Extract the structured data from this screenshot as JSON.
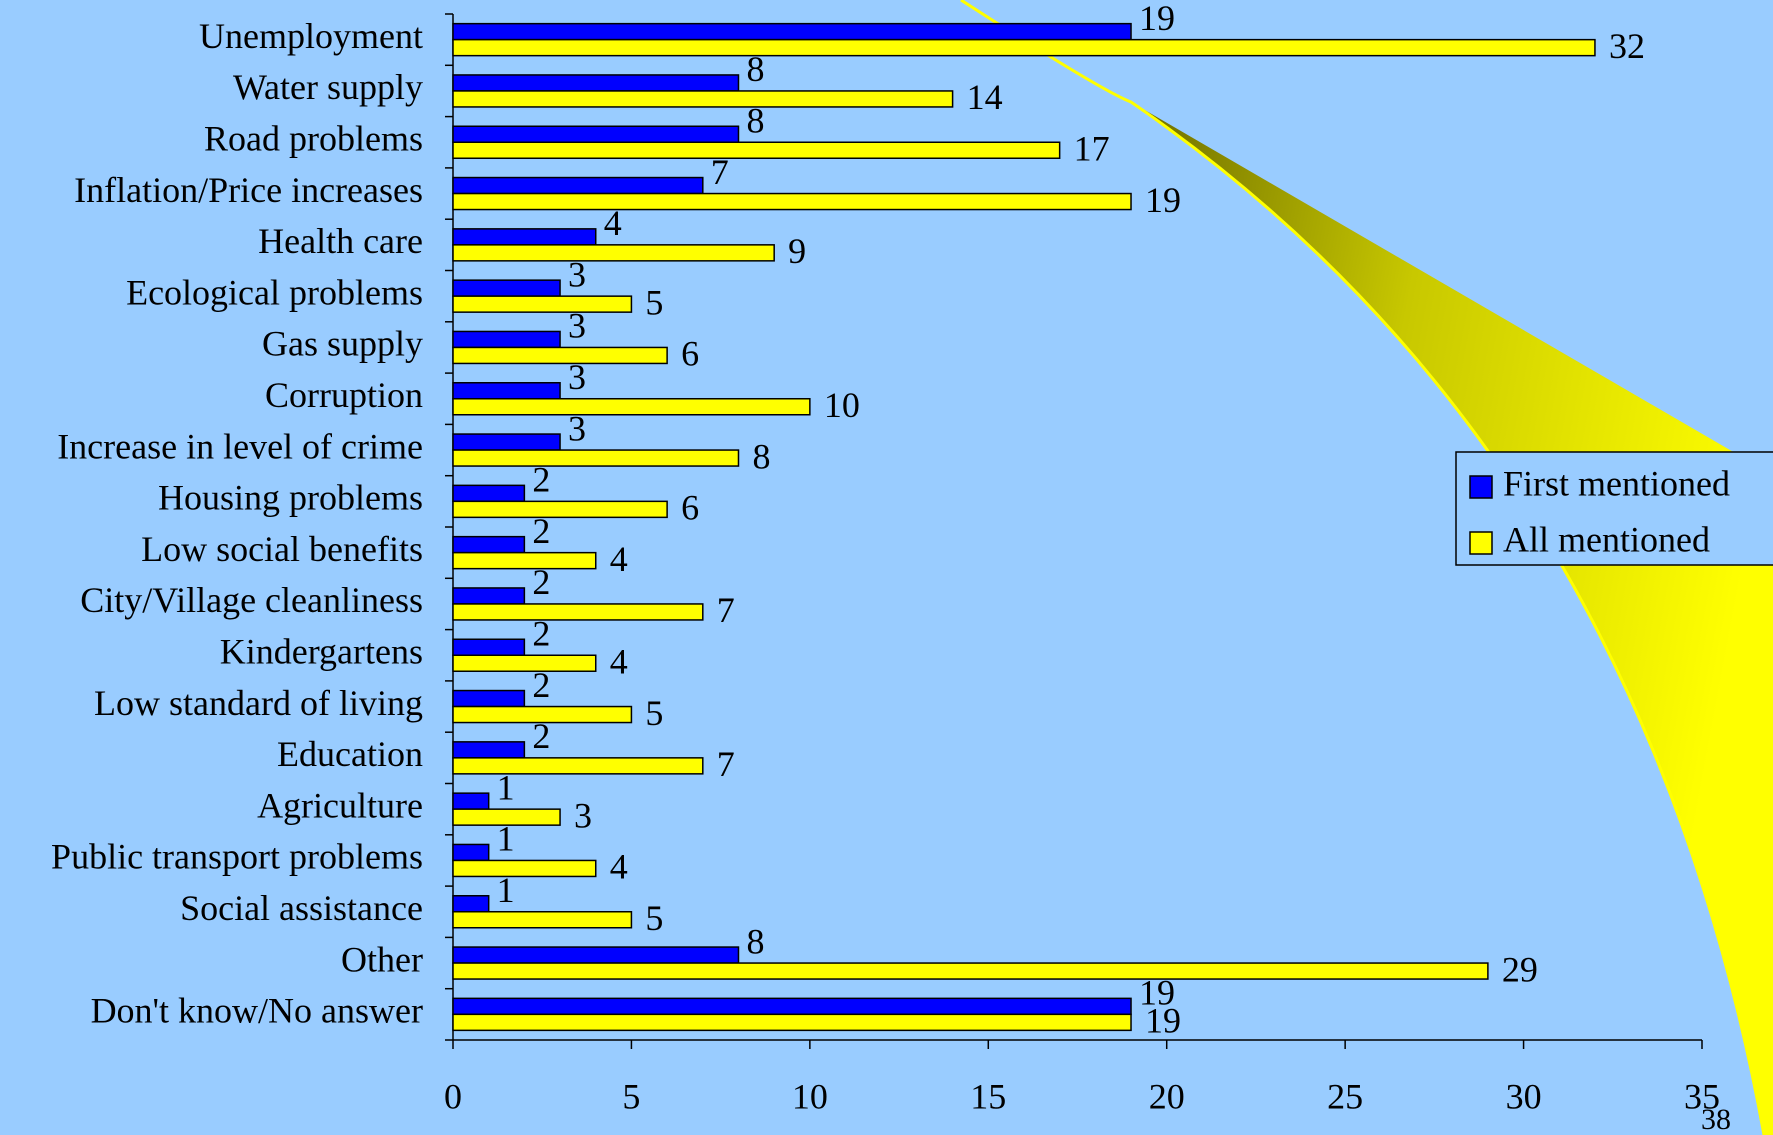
{
  "chart_data": {
    "type": "bar",
    "orientation": "horizontal",
    "categories": [
      "Unemployment",
      "Water supply",
      "Road problems",
      "Inflation/Price increases",
      "Health care",
      "Ecological problems",
      "Gas supply",
      "Corruption",
      "Increase in level of crime",
      "Housing problems",
      "Low social benefits",
      "City/Village cleanliness",
      "Kindergartens",
      "Low standard of living",
      "Education",
      "Agriculture",
      "Public transport problems",
      "Social assistance",
      "Other",
      "Don't know/No answer"
    ],
    "series": [
      {
        "name": "First mentioned",
        "color": "#0000ff",
        "values": [
          19,
          8,
          8,
          7,
          4,
          3,
          3,
          3,
          3,
          2,
          2,
          2,
          2,
          2,
          2,
          1,
          1,
          1,
          8,
          19
        ]
      },
      {
        "name": "All mentioned",
        "color": "#ffff00",
        "values": [
          32,
          14,
          17,
          19,
          9,
          5,
          6,
          10,
          8,
          6,
          4,
          7,
          4,
          5,
          7,
          3,
          4,
          5,
          29,
          19
        ]
      }
    ],
    "xlim": [
      0,
      35
    ],
    "xticks": [
      0,
      5,
      10,
      15,
      20,
      25,
      30,
      35
    ],
    "legend": "right",
    "page_number": "38"
  }
}
